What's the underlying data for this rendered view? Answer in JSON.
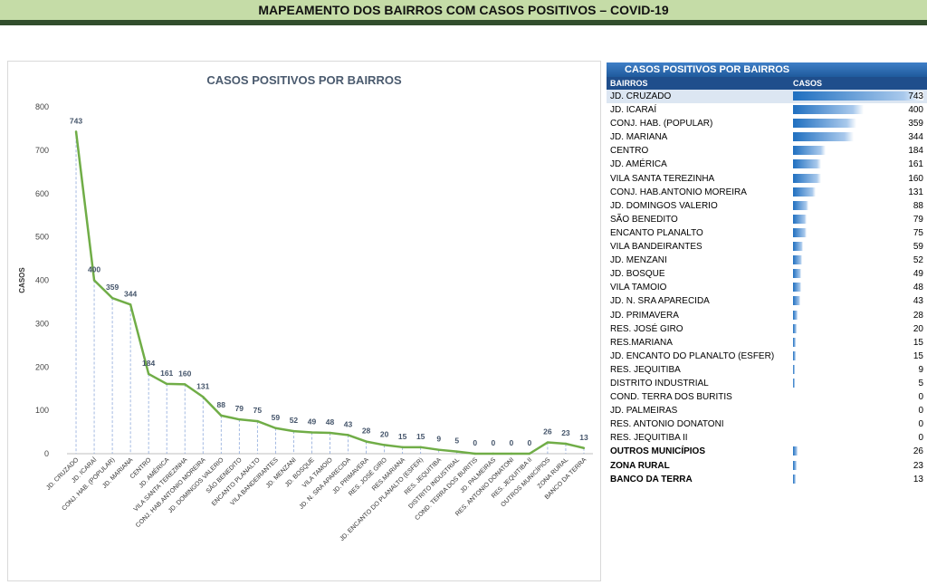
{
  "banner": {
    "title": "MAPEAMENTO DOS BAIRROS COM CASOS POSITIVOS – COVID-19"
  },
  "colors": {
    "banner_light": "#c5dca7",
    "banner_dark": "#324e2d",
    "line": "#70ad47",
    "table_header": "#1f4e8c",
    "bar": "#1f6fc0"
  },
  "chart_data": {
    "type": "line",
    "title": "CASOS POSITIVOS POR BAIRROS",
    "xlabel": "",
    "ylabel": "CASOS",
    "ylim": [
      0,
      800
    ],
    "yticks": [
      0,
      100,
      200,
      300,
      400,
      500,
      600,
      700,
      800
    ],
    "grid": false,
    "legend": "none",
    "categories": [
      "JD. CRUZADO",
      "JD. ICARAÍ",
      "CONJ. HAB. (POPULAR)",
      "JD. MARIANA",
      "CENTRO",
      "JD. AMÉRICA",
      "VILA SANTA TEREZINHA",
      "CONJ. HAB.ANTONIO MOREIRA",
      "JD. DOMINGOS VALERIO",
      "SÃO BENEDITO",
      "ENCANTO PLANALTO",
      "VILA BANDEIRANTES",
      "JD. MENZANI",
      "JD. BOSQUE",
      "VILA TAMOIO",
      "JD. N. SRA APARECIDA",
      "JD. PRIMAVERA",
      "RES. JOSÉ GIRO",
      "RES.MARIANA",
      "JD. ENCANTO DO PLANALTO (ESFER)",
      "RES. JEQUITIBA",
      "DISTRITO INDUSTRIAL",
      "COND. TERRA DOS BURITIS",
      "JD. PALMEIRAS",
      "RES. ANTONIO DONATONI",
      "RES. JEQUITIBA II",
      "OUTROS MUNICÍPIOS",
      "ZONA RURAL",
      "BANCO DA TERRA"
    ],
    "values": [
      743,
      400,
      359,
      344,
      184,
      161,
      160,
      131,
      88,
      79,
      75,
      59,
      52,
      49,
      48,
      43,
      28,
      20,
      15,
      15,
      9,
      5,
      0,
      0,
      0,
      0,
      26,
      23,
      13
    ]
  },
  "table": {
    "title": "CASOS POSITIVOS POR BAIRROS",
    "col_name": "BAIRROS",
    "col_value": "CASOS",
    "max_value": 743,
    "rows": [
      {
        "name": "JD. CRUZADO",
        "value": "743",
        "bold": false
      },
      {
        "name": "JD. ICARAÍ",
        "value": "400",
        "bold": false
      },
      {
        "name": "CONJ. HAB. (POPULAR)",
        "value": "359",
        "bold": false
      },
      {
        "name": "JD. MARIANA",
        "value": "344",
        "bold": false
      },
      {
        "name": "CENTRO",
        "value": "184",
        "bold": false
      },
      {
        "name": "JD. AMÉRICA",
        "value": "161",
        "bold": false
      },
      {
        "name": "VILA SANTA TEREZINHA",
        "value": "160",
        "bold": false
      },
      {
        "name": "CONJ. HAB.ANTONIO MOREIRA",
        "value": "131",
        "bold": false
      },
      {
        "name": "JD. DOMINGOS VALERIO",
        "value": "88",
        "bold": false
      },
      {
        "name": "SÃO BENEDITO",
        "value": "79",
        "bold": false
      },
      {
        "name": "ENCANTO PLANALTO",
        "value": "75",
        "bold": false
      },
      {
        "name": "VILA BANDEIRANTES",
        "value": "59",
        "bold": false
      },
      {
        "name": "JD. MENZANI",
        "value": "52",
        "bold": false
      },
      {
        "name": "JD. BOSQUE",
        "value": "49",
        "bold": false
      },
      {
        "name": "VILA TAMOIO",
        "value": "48",
        "bold": false
      },
      {
        "name": "JD. N. SRA APARECIDA",
        "value": "43",
        "bold": false
      },
      {
        "name": "JD. PRIMAVERA",
        "value": "28",
        "bold": false
      },
      {
        "name": "RES. JOSÉ GIRO",
        "value": "20",
        "bold": false
      },
      {
        "name": "RES.MARIANA",
        "value": "15",
        "bold": false
      },
      {
        "name": "JD. ENCANTO DO PLANALTO (ESFER)",
        "value": "15",
        "bold": false
      },
      {
        "name": "RES. JEQUITIBA",
        "value": "9",
        "bold": false
      },
      {
        "name": "DISTRITO INDUSTRIAL",
        "value": "5",
        "bold": false
      },
      {
        "name": "COND. TERRA DOS BURITIS",
        "value": "0",
        "bold": false
      },
      {
        "name": "JD. PALMEIRAS",
        "value": "0",
        "bold": false
      },
      {
        "name": "RES. ANTONIO DONATONI",
        "value": "0",
        "bold": false
      },
      {
        "name": "RES. JEQUITIBA II",
        "value": "0",
        "bold": false
      },
      {
        "name": "OUTROS MUNICÍPIOS",
        "value": "26",
        "bold": true
      },
      {
        "name": "ZONA RURAL",
        "value": "23",
        "bold": true
      },
      {
        "name": "BANCO DA TERRA",
        "value": "13",
        "bold": true
      }
    ]
  }
}
